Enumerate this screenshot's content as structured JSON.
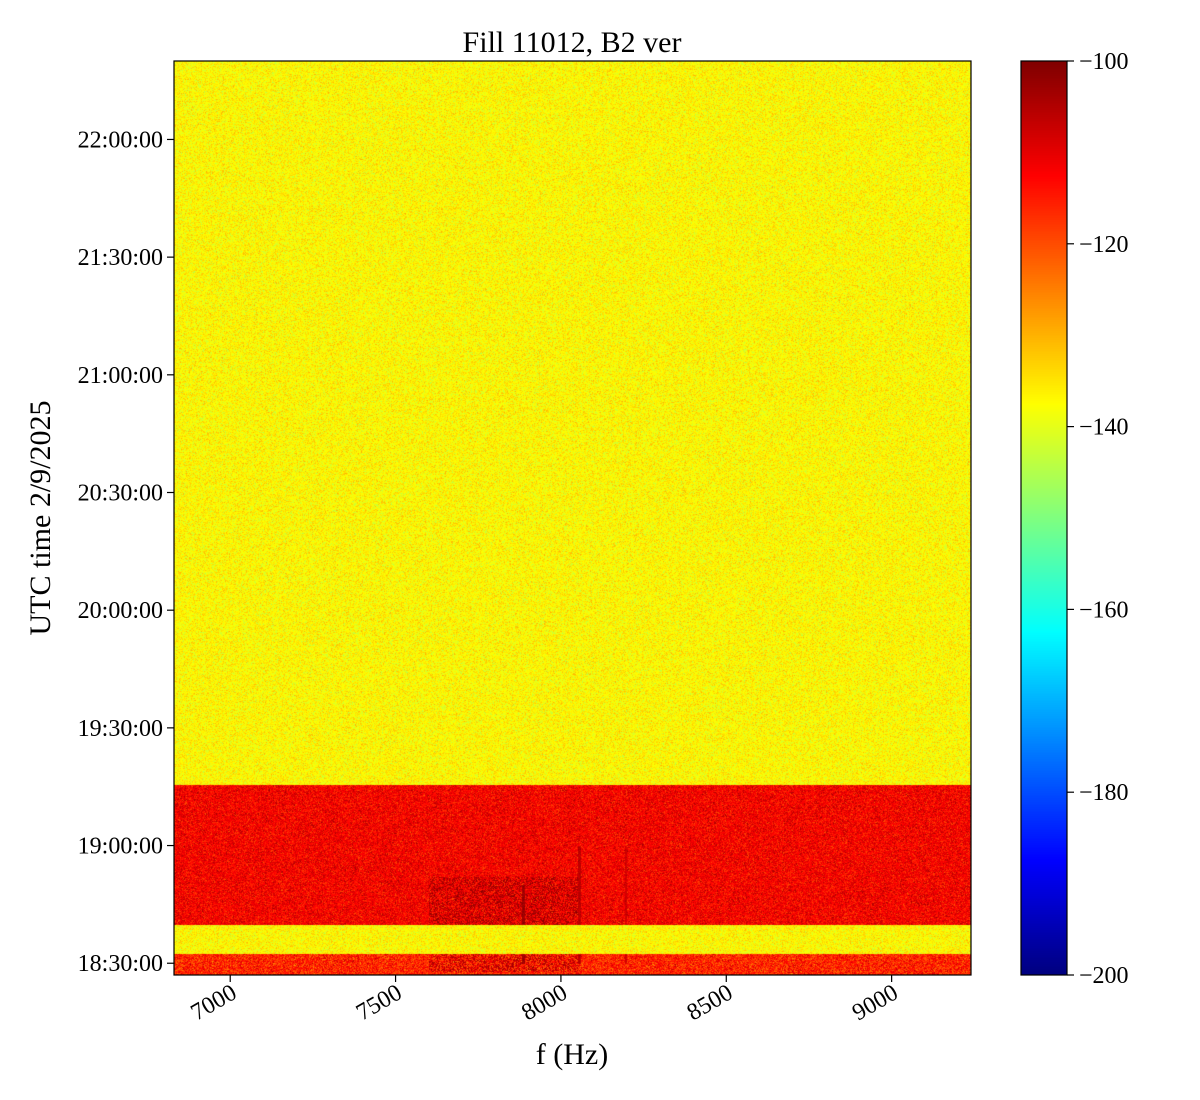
{
  "chart_data": {
    "type": "heatmap",
    "title": "Fill 11012, B2 ver",
    "xlabel": "f (Hz)",
    "ylabel": "UTC time 2/9/2025",
    "xlim": [
      6830,
      9240
    ],
    "ylim": [
      "18:27:00",
      "22:20:00"
    ],
    "x_ticks": [
      7000,
      7500,
      8000,
      8500,
      9000
    ],
    "x_tick_labels": [
      "7000",
      "7500",
      "8000",
      "8500",
      "9000"
    ],
    "y_ticks": [
      "18:30:00",
      "19:00:00",
      "19:30:00",
      "20:00:00",
      "20:30:00",
      "21:00:00",
      "21:30:00",
      "22:00:00"
    ],
    "y_tick_labels": [
      "18:30:00",
      "19:00:00",
      "19:30:00",
      "20:00:00",
      "20:30:00",
      "21:00:00",
      "21:30:00",
      "22:00:00"
    ],
    "colorbar": {
      "colormap": "jet",
      "range": [
        -200,
        -100
      ],
      "ticks": [
        -100,
        -120,
        -140,
        -160,
        -180,
        -200
      ],
      "tick_labels": [
        "−100",
        "−120",
        "−140",
        "−160",
        "−180",
        "−200"
      ]
    },
    "regions": [
      {
        "t_start": "18:27:00",
        "t_end": "18:32:30",
        "level_db": -116,
        "noise_db": 6
      },
      {
        "t_start": "18:32:30",
        "t_end": "18:40:00",
        "level_db": -137,
        "noise_db": 4
      },
      {
        "t_start": "18:40:00",
        "t_end": "19:15:30",
        "level_db": -112,
        "noise_db": 5
      },
      {
        "t_start": "19:15:30",
        "t_end": "22:20:00",
        "level_db": -137,
        "noise_db": 4
      }
    ],
    "features": [
      {
        "kind": "line",
        "f_hz": 7885,
        "t_start": "18:30:00",
        "t_end": "18:50:00",
        "level_db": -103
      },
      {
        "kind": "line",
        "f_hz": 8055,
        "t_start": "18:30:00",
        "t_end": "19:00:00",
        "level_db": -106
      },
      {
        "kind": "line",
        "f_hz": 8195,
        "t_start": "18:30:00",
        "t_end": "19:00:00",
        "level_db": -108
      },
      {
        "kind": "band",
        "f_start_hz": 7600,
        "f_end_hz": 8050,
        "t_start": "18:40:00",
        "t_end": "18:52:00",
        "level_db": -104
      },
      {
        "kind": "band",
        "f_start_hz": 7600,
        "f_end_hz": 8050,
        "t_start": "18:28:00",
        "t_end": "18:32:30",
        "level_db": -106
      }
    ]
  }
}
